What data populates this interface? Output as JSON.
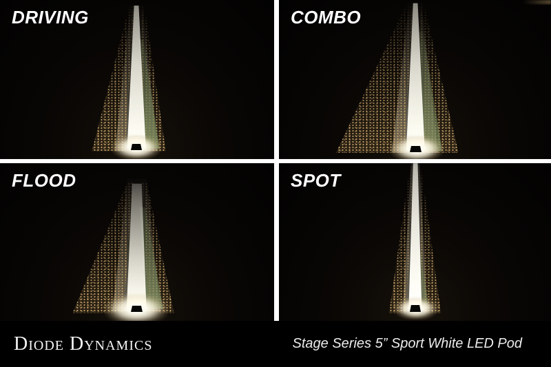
{
  "quadrants": [
    {
      "id": "driving",
      "label": "DRIVING",
      "beam_type": "driving"
    },
    {
      "id": "combo",
      "label": "COMBO",
      "beam_type": "combo"
    },
    {
      "id": "flood",
      "label": "FLOOD",
      "beam_type": "flood"
    },
    {
      "id": "spot",
      "label": "SPOT",
      "beam_type": "spot"
    }
  ],
  "footer": {
    "brand": "Diode Dynamics",
    "product": "Stage Series 5” Sport White LED Pod"
  },
  "colors": {
    "background": "#000000",
    "divider": "#ffffff",
    "label_text": "#ffffff",
    "beam_white": "#fdfcf2",
    "gravel_tan": "#c9a96b",
    "grass_green": "#5d6e49"
  }
}
